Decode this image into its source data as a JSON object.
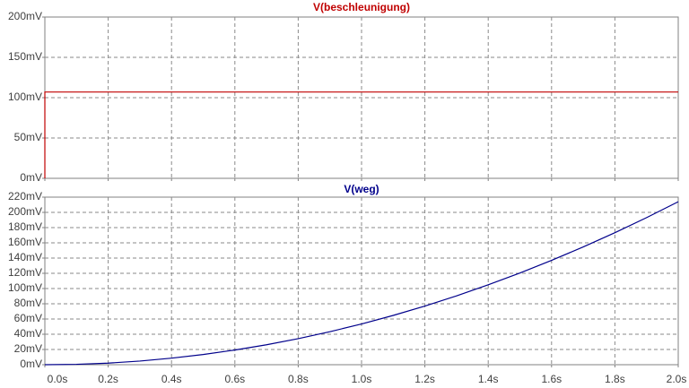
{
  "chart_data": [
    {
      "type": "line",
      "title": "V(beschleunigung)",
      "color": "#c00000",
      "x": [
        0,
        0,
        2.0
      ],
      "series": [
        {
          "name": "V(beschleunigung)",
          "color": "#c00000",
          "values": [
            0,
            107,
            107
          ]
        }
      ],
      "xlim": [
        0,
        2.0
      ],
      "ylim": [
        0,
        200
      ],
      "yticks": [
        {
          "value": 0,
          "label": "0mV"
        },
        {
          "value": 50,
          "label": "50mV"
        },
        {
          "value": 100,
          "label": "100mV"
        },
        {
          "value": 150,
          "label": "150mV"
        },
        {
          "value": 200,
          "label": "200mV"
        }
      ],
      "grid": true
    },
    {
      "type": "line",
      "title": "V(weg)",
      "color": "#00008b",
      "x": [
        0,
        0.1,
        0.2,
        0.3,
        0.4,
        0.5,
        0.6,
        0.7,
        0.8,
        0.9,
        1.0,
        1.1,
        1.2,
        1.3,
        1.4,
        1.5,
        1.6,
        1.7,
        1.8,
        1.9,
        2.0
      ],
      "series": [
        {
          "name": "V(weg)",
          "color": "#00008b",
          "values": [
            0,
            0.5,
            2.1,
            4.8,
            8.6,
            13.4,
            19.3,
            26.2,
            34.2,
            43.3,
            53.5,
            64.7,
            77.0,
            90.4,
            104.9,
            120.4,
            137.0,
            154.6,
            173.3,
            193.1,
            214.0
          ]
        }
      ],
      "xlim": [
        0,
        2.0
      ],
      "xticks": [
        {
          "value": 0,
          "label": "0.0s"
        },
        {
          "value": 0.2,
          "label": "0.2s"
        },
        {
          "value": 0.4,
          "label": "0.4s"
        },
        {
          "value": 0.6,
          "label": "0.6s"
        },
        {
          "value": 0.8,
          "label": "0.8s"
        },
        {
          "value": 1.0,
          "label": "1.0s"
        },
        {
          "value": 1.2,
          "label": "1.2s"
        },
        {
          "value": 1.4,
          "label": "1.4s"
        },
        {
          "value": 1.6,
          "label": "1.6s"
        },
        {
          "value": 1.8,
          "label": "1.8s"
        },
        {
          "value": 2.0,
          "label": "2.0s"
        }
      ],
      "ylim": [
        0,
        220
      ],
      "yticks": [
        {
          "value": 0,
          "label": "0mV"
        },
        {
          "value": 20,
          "label": "20mV"
        },
        {
          "value": 40,
          "label": "40mV"
        },
        {
          "value": 60,
          "label": "60mV"
        },
        {
          "value": 80,
          "label": "80mV"
        },
        {
          "value": 100,
          "label": "100mV"
        },
        {
          "value": 120,
          "label": "120mV"
        },
        {
          "value": 140,
          "label": "140mV"
        },
        {
          "value": 160,
          "label": "160mV"
        },
        {
          "value": 180,
          "label": "180mV"
        },
        {
          "value": 200,
          "label": "200mV"
        },
        {
          "value": 220,
          "label": "220mV"
        }
      ],
      "grid": true
    }
  ]
}
